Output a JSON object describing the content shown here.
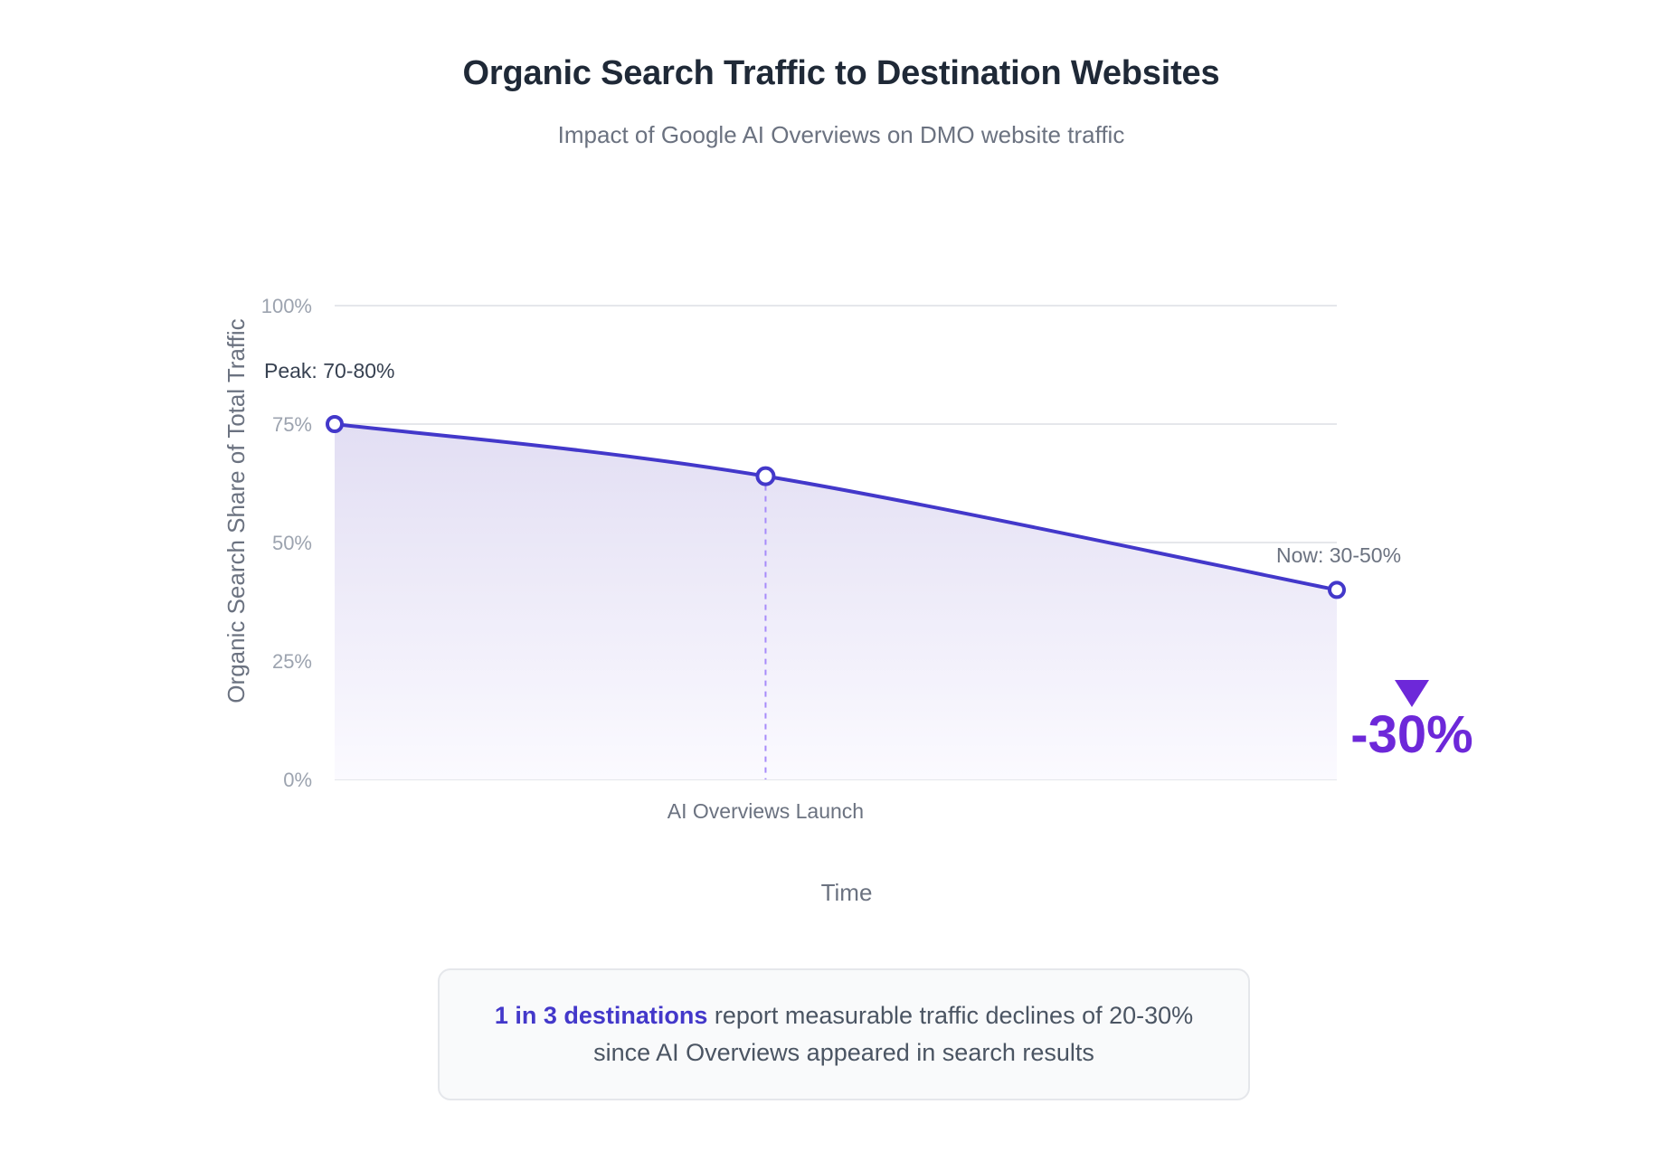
{
  "colors": {
    "line": "#4338ca",
    "accent": "#6d28d9",
    "area_top": "#e2def3",
    "area_bottom": "#fbfaff",
    "grid": "#e5e7eb",
    "tick": "#9ca3af",
    "text_dark": "#1f2937",
    "text_muted": "#6b7280"
  },
  "chart_data": {
    "type": "area",
    "title": "Organic Search Traffic to Destination Websites",
    "subtitle": "Impact of Google AI Overviews on DMO website traffic",
    "xlabel": "Time",
    "ylabel": "Organic Search Share of Total Traffic",
    "ylim": [
      0,
      100
    ],
    "yticks": [
      "0%",
      "25%",
      "50%",
      "75%",
      "100%"
    ],
    "x": [
      0,
      0.43,
      1
    ],
    "values": [
      75,
      64,
      40
    ],
    "grid": true,
    "annotations": {
      "peak": "Peak: 70-80%",
      "now": "Now: 30-50%",
      "launch": "AI Overviews Launch",
      "change": "-30%"
    }
  },
  "callout": {
    "highlight": "1 in 3 destinations",
    "text": " report measurable traffic declines of 20-30% since AI Overviews appeared in search results"
  }
}
